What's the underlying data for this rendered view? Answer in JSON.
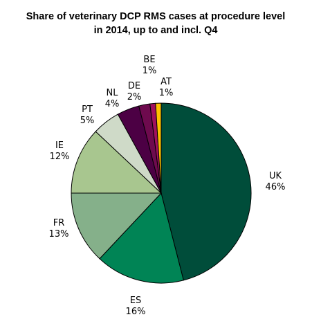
{
  "chart_data": {
    "type": "pie",
    "title_lines": [
      "Share of veterinary DCP RMS cases at procedure level",
      "in 2014, up to and incl. Q4"
    ],
    "slices": [
      {
        "name": "UK",
        "value": 46,
        "label": "46%",
        "color": "#004D3A"
      },
      {
        "name": "ES",
        "value": 16,
        "label": "16%",
        "color": "#008455"
      },
      {
        "name": "FR",
        "value": 13,
        "label": "13%",
        "color": "#85B08A"
      },
      {
        "name": "IE",
        "value": 12,
        "label": "12%",
        "color": "#A8C68F"
      },
      {
        "name": "PT",
        "value": 5,
        "label": "5%",
        "color": "#CFDAC8"
      },
      {
        "name": "NL",
        "value": 4,
        "label": "4%",
        "color": "#4C0044"
      },
      {
        "name": "DE",
        "value": 2,
        "label": "2%",
        "color": "#6E0A4E"
      },
      {
        "name": "BE",
        "value": 1,
        "label": "1%",
        "color": "#A0105E"
      },
      {
        "name": "AT",
        "value": 1,
        "label": "1%",
        "color": "#FFC000"
      }
    ]
  }
}
